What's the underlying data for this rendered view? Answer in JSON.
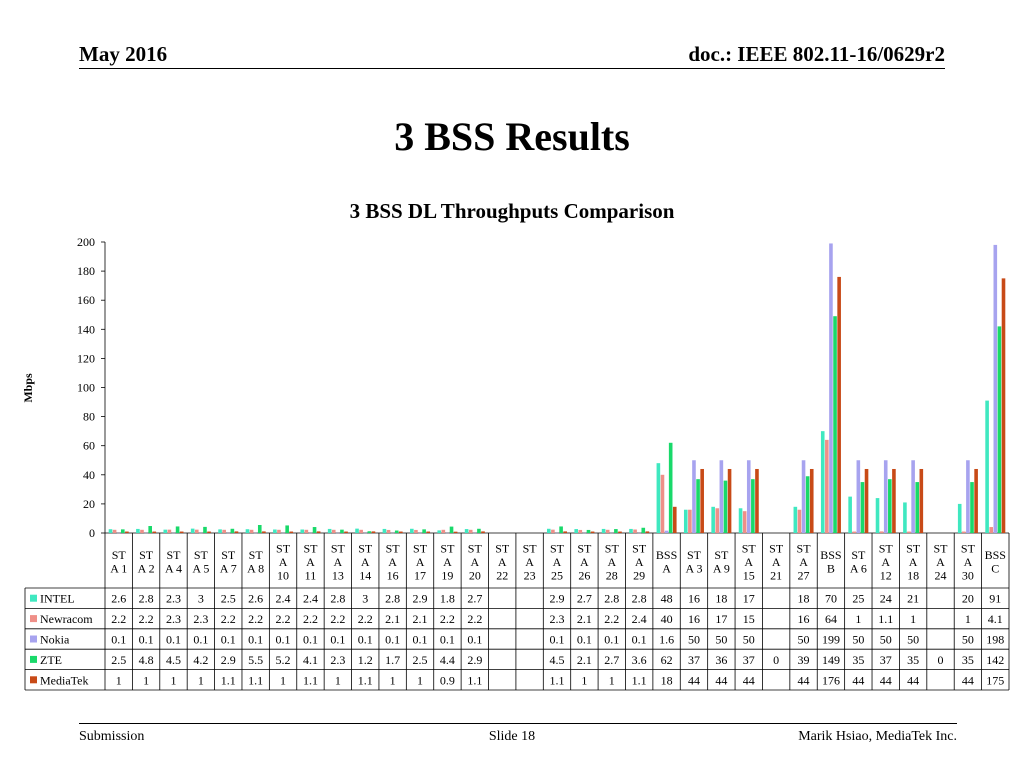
{
  "header": {
    "date": "May 2016",
    "doc": "doc.: IEEE 802.11-16/0629r2"
  },
  "slide_title": "3 BSS Results",
  "footer": {
    "left": "Submission",
    "center": "Slide 18",
    "right": "Marik Hsiao, MediaTek Inc."
  },
  "colors": {
    "INTEL": "#3fe8c0",
    "Newracom": "#ef8f88",
    "Nokia": "#a7a3ef",
    "ZTE": "#19d96a",
    "MediaTek": "#c84a17"
  },
  "chart_data": {
    "type": "bar",
    "title": "3 BSS DL Throughputs Comparison",
    "ylabel": "Mbps",
    "xlabel": "",
    "ylim": [
      0,
      200
    ],
    "yticks": [
      0,
      20,
      40,
      60,
      80,
      100,
      120,
      140,
      160,
      180,
      200
    ],
    "grid": false,
    "legend": "table",
    "categories": [
      [
        "ST",
        "A 1"
      ],
      [
        "ST",
        "A 2"
      ],
      [
        "ST",
        "A 4"
      ],
      [
        "ST",
        "A 5"
      ],
      [
        "ST",
        "A 7"
      ],
      [
        "ST",
        "A 8"
      ],
      [
        "ST",
        "A",
        "10"
      ],
      [
        "ST",
        "A",
        "11"
      ],
      [
        "ST",
        "A",
        "13"
      ],
      [
        "ST",
        "A",
        "14"
      ],
      [
        "ST",
        "A",
        "16"
      ],
      [
        "ST",
        "A",
        "17"
      ],
      [
        "ST",
        "A",
        "19"
      ],
      [
        "ST",
        "A",
        "20"
      ],
      [
        "ST",
        "A",
        "22"
      ],
      [
        "ST",
        "A",
        "23"
      ],
      [
        "ST",
        "A",
        "25"
      ],
      [
        "ST",
        "A",
        "26"
      ],
      [
        "ST",
        "A",
        "28"
      ],
      [
        "ST",
        "A",
        "29"
      ],
      [
        "BSS",
        "A"
      ],
      [
        "ST",
        "A 3"
      ],
      [
        "ST",
        "A 9"
      ],
      [
        "ST",
        "A",
        "15"
      ],
      [
        "ST",
        "A",
        "21"
      ],
      [
        "ST",
        "A",
        "27"
      ],
      [
        "BSS",
        "B"
      ],
      [
        "ST",
        "A 6"
      ],
      [
        "ST",
        "A",
        "12"
      ],
      [
        "ST",
        "A",
        "18"
      ],
      [
        "ST",
        "A",
        "24"
      ],
      [
        "ST",
        "A",
        "30"
      ],
      [
        "BSS",
        "C"
      ]
    ],
    "series": [
      {
        "name": "INTEL",
        "values": [
          "2.6",
          "2.8",
          "2.3",
          "3",
          "2.5",
          "2.6",
          "2.4",
          "2.4",
          "2.8",
          "3",
          "2.8",
          "2.9",
          "1.8",
          "2.7",
          "",
          "",
          "2.9",
          "2.7",
          "2.8",
          "2.8",
          "48",
          "16",
          "18",
          "17",
          "",
          "18",
          "70",
          "25",
          "24",
          "21",
          "",
          "20",
          "91"
        ]
      },
      {
        "name": "Newracom",
        "values": [
          "2.2",
          "2.2",
          "2.3",
          "2.3",
          "2.2",
          "2.2",
          "2.2",
          "2.2",
          "2.2",
          "2.2",
          "2.1",
          "2.1",
          "2.2",
          "2.2",
          "",
          "",
          "2.3",
          "2.1",
          "2.2",
          "2.4",
          "40",
          "16",
          "17",
          "15",
          "",
          "16",
          "64",
          "1",
          "1.1",
          "1",
          "",
          "1",
          "4.1"
        ]
      },
      {
        "name": "Nokia",
        "values": [
          "0.1",
          "0.1",
          "0.1",
          "0.1",
          "0.1",
          "0.1",
          "0.1",
          "0.1",
          "0.1",
          "0.1",
          "0.1",
          "0.1",
          "0.1",
          "0.1",
          "",
          "",
          "0.1",
          "0.1",
          "0.1",
          "0.1",
          "1.6",
          "50",
          "50",
          "50",
          "",
          "50",
          "199",
          "50",
          "50",
          "50",
          "",
          "50",
          "198"
        ]
      },
      {
        "name": "ZTE",
        "values": [
          "2.5",
          "4.8",
          "4.5",
          "4.2",
          "2.9",
          "5.5",
          "5.2",
          "4.1",
          "2.3",
          "1.2",
          "1.7",
          "2.5",
          "4.4",
          "2.9",
          "",
          "",
          "4.5",
          "2.1",
          "2.7",
          "3.6",
          "62",
          "37",
          "36",
          "37",
          "0",
          "39",
          "149",
          "35",
          "37",
          "35",
          "0",
          "35",
          "142"
        ]
      },
      {
        "name": "MediaTek",
        "values": [
          "1",
          "1",
          "1",
          "1",
          "1.1",
          "1.1",
          "1",
          "1.1",
          "1",
          "1.1",
          "1",
          "1",
          "0.9",
          "1.1",
          "",
          "",
          "1.1",
          "1",
          "1",
          "1.1",
          "18",
          "44",
          "44",
          "44",
          "",
          "44",
          "176",
          "44",
          "44",
          "44",
          "",
          "44",
          "175"
        ]
      }
    ]
  }
}
